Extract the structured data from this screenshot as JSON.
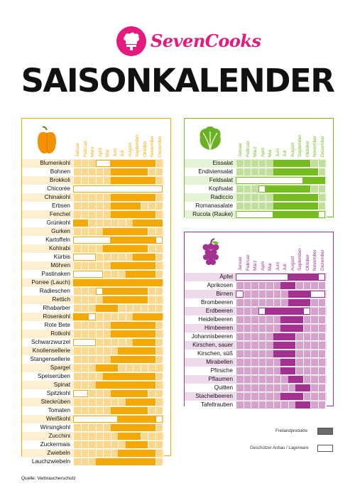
{
  "brand": {
    "name": "SevenCooks",
    "color": "#e6197e"
  },
  "title": "SAISONKALENDER",
  "source": "Quelle: Verbraucherschutz",
  "months": [
    "Januar",
    "Februar",
    "März",
    "April",
    "Mai",
    "Juni",
    "Juli",
    "August",
    "September",
    "Oktober",
    "November",
    "Dezember"
  ],
  "legend": {
    "freiland": "Freilandprodukte",
    "lager": "Geschützer Anbau / Lagerware"
  },
  "colors": {
    "vegetables": "#f5a800",
    "salads": "#76bc21",
    "fruits": "#a3318f"
  },
  "vegetables": [
    {
      "name": "Blumenkohl",
      "f": [
        6,
        7,
        8,
        9,
        10,
        11
      ],
      "g": [
        4,
        5
      ]
    },
    {
      "name": "Bohnen",
      "f": [
        6,
        7,
        8,
        9,
        10
      ],
      "g": []
    },
    {
      "name": "Brokkoli",
      "f": [
        6,
        7,
        8,
        9,
        10,
        11
      ],
      "g": []
    },
    {
      "name": "Chicorée",
      "f": [],
      "g": [
        1,
        2,
        3,
        4,
        5,
        6,
        7,
        8,
        9,
        10,
        11,
        12
      ]
    },
    {
      "name": "Chinakohl",
      "f": [
        6,
        7,
        8,
        9,
        10,
        11
      ],
      "g": []
    },
    {
      "name": "Erbsen",
      "f": [
        6,
        7,
        8,
        9
      ],
      "g": []
    },
    {
      "name": "Fenchel",
      "f": [
        6,
        7,
        8,
        9,
        10,
        11
      ],
      "g": []
    },
    {
      "name": "Grünkohl",
      "f": [
        1,
        2,
        9,
        10,
        11,
        12
      ],
      "g": []
    },
    {
      "name": "Gurken",
      "f": [
        5,
        6,
        7,
        8,
        9,
        10
      ],
      "g": []
    },
    {
      "name": "Kartoffeln",
      "f": [
        6,
        7,
        8,
        9,
        10,
        11
      ],
      "g": [
        1,
        2,
        3,
        4,
        5,
        12
      ]
    },
    {
      "name": "Kohlrabi",
      "f": [
        5,
        6,
        7,
        8,
        9,
        10
      ],
      "g": []
    },
    {
      "name": "Kürbis",
      "f": [
        9,
        10,
        11
      ],
      "g": [
        1,
        2,
        3
      ]
    },
    {
      "name": "Möhren",
      "f": [
        6,
        7,
        8,
        9,
        10,
        11
      ],
      "g": []
    },
    {
      "name": "Pastinaken",
      "f": [
        8,
        9,
        10,
        11
      ],
      "g": [
        1,
        2,
        3,
        4
      ]
    },
    {
      "name": "Porree (Lauch)",
      "f": [
        1,
        2,
        3,
        4,
        5,
        6,
        7,
        8,
        9,
        10,
        11,
        12
      ],
      "g": []
    },
    {
      "name": "Radieschen",
      "f": [
        5,
        6,
        7,
        8,
        9,
        10
      ],
      "g": [
        4
      ]
    },
    {
      "name": "Rettich",
      "f": [
        5,
        6,
        7,
        8,
        9,
        10
      ],
      "g": []
    },
    {
      "name": "Rhabarber",
      "f": [
        4,
        5,
        6
      ],
      "g": []
    },
    {
      "name": "Rosenkohl",
      "f": [
        1,
        2,
        9,
        10,
        11,
        12
      ],
      "g": [
        3
      ]
    },
    {
      "name": "Rote Bete",
      "f": [
        6,
        7,
        8,
        9,
        10,
        11
      ],
      "g": []
    },
    {
      "name": "Rotkohl",
      "f": [
        6,
        7,
        8,
        9,
        10,
        11
      ],
      "g": []
    },
    {
      "name": "Schwarzwurzel",
      "f": [
        9,
        10,
        11
      ],
      "g": [
        1,
        2,
        3
      ]
    },
    {
      "name": "Knollensellerie",
      "f": [
        7,
        8,
        9,
        10,
        11
      ],
      "g": []
    },
    {
      "name": "Stangensellerie",
      "f": [
        6,
        7,
        8,
        9,
        10,
        11
      ],
      "g": []
    },
    {
      "name": "Spargel",
      "f": [
        4,
        5,
        6
      ],
      "g": []
    },
    {
      "name": "Speiserüben",
      "f": [
        5,
        6,
        7,
        8,
        9,
        10,
        11
      ],
      "g": []
    },
    {
      "name": "Spinat",
      "f": [
        4,
        5,
        6,
        7,
        8,
        9,
        10,
        11
      ],
      "g": []
    },
    {
      "name": "Spitzkohl",
      "f": [
        6,
        7,
        8,
        9,
        10
      ],
      "g": [
        1,
        2
      ]
    },
    {
      "name": "Steckrüben",
      "f": [
        8,
        9,
        10,
        11
      ],
      "g": []
    },
    {
      "name": "Tomaten",
      "f": [
        6,
        7,
        8,
        9,
        10
      ],
      "g": []
    },
    {
      "name": "Weißkohl",
      "f": [
        7,
        8,
        9,
        10,
        11
      ],
      "g": [
        1,
        2,
        3,
        4,
        5,
        6,
        12
      ]
    },
    {
      "name": "Wirsingkohl",
      "f": [
        6,
        7,
        8,
        9,
        10,
        11
      ],
      "g": []
    },
    {
      "name": "Zucchini",
      "f": [
        7,
        8,
        9
      ],
      "g": []
    },
    {
      "name": "Zuckermais",
      "f": [
        8,
        9,
        10
      ],
      "g": []
    },
    {
      "name": "Zwiebeln",
      "f": [
        7,
        8,
        9,
        10,
        11
      ],
      "g": []
    },
    {
      "name": "Lauchzwiebeln",
      "f": [
        4,
        5,
        6,
        7,
        8,
        9,
        10,
        11
      ],
      "g": []
    }
  ],
  "salads": [
    {
      "name": "Eissalat",
      "f": [
        6,
        7,
        8,
        9,
        10
      ],
      "g": []
    },
    {
      "name": "Endiviensalat",
      "f": [
        6,
        7,
        8,
        9,
        10,
        11
      ],
      "g": []
    },
    {
      "name": "Feldsalat",
      "f": [
        10,
        11,
        12
      ],
      "g": [
        1,
        2,
        3,
        4,
        5,
        6,
        7,
        8,
        9
      ]
    },
    {
      "name": "Kopfsalat",
      "f": [
        5,
        6,
        7,
        8,
        9,
        10
      ],
      "g": [
        4
      ]
    },
    {
      "name": "Radiccio",
      "f": [
        6,
        7,
        8,
        9,
        10,
        11
      ],
      "g": []
    },
    {
      "name": "Romanasalate",
      "f": [
        6,
        7,
        8,
        9,
        10,
        11
      ],
      "g": []
    },
    {
      "name": "Rucola (Rauke)",
      "f": [
        6,
        7,
        8,
        9,
        10,
        11
      ],
      "g": [
        1,
        2,
        3,
        4,
        5,
        12
      ]
    }
  ],
  "fruits": [
    {
      "name": "Äpfel",
      "f": [
        8,
        9,
        10,
        11
      ],
      "g": [
        1,
        2,
        3,
        4,
        5,
        6,
        7,
        12
      ]
    },
    {
      "name": "Aprikosen",
      "f": [
        7,
        8
      ],
      "g": []
    },
    {
      "name": "Birnen",
      "f": [
        8,
        9,
        10
      ],
      "g": [
        1,
        11,
        12
      ]
    },
    {
      "name": "Brombeeren",
      "f": [
        8,
        9,
        10
      ],
      "g": []
    },
    {
      "name": "Erdbeeren",
      "f": [
        5,
        6,
        7,
        8,
        9
      ],
      "g": [
        4,
        10
      ]
    },
    {
      "name": "Heidelbeeren",
      "f": [
        7,
        8,
        9
      ],
      "g": []
    },
    {
      "name": "Himbeeren",
      "f": [
        7,
        8,
        9
      ],
      "g": []
    },
    {
      "name": "Johannisbeeren",
      "f": [
        6,
        7,
        8
      ],
      "g": []
    },
    {
      "name": "Kirschen, sauer",
      "f": [
        6,
        7,
        8
      ],
      "g": []
    },
    {
      "name": "Kirschen, süß",
      "f": [
        6,
        7,
        8
      ],
      "g": []
    },
    {
      "name": "Mirabellen",
      "f": [
        7,
        8
      ],
      "g": []
    },
    {
      "name": "Pfirsiche",
      "f": [
        7,
        8
      ],
      "g": []
    },
    {
      "name": "Pflaumen",
      "f": [
        8,
        9
      ],
      "g": []
    },
    {
      "name": "Quitten",
      "f": [
        9,
        10
      ],
      "g": []
    },
    {
      "name": "Stachelbeeren",
      "f": [
        7,
        8,
        9
      ],
      "g": []
    },
    {
      "name": "Tafeltrauben",
      "f": [
        9,
        10
      ],
      "g": []
    }
  ]
}
